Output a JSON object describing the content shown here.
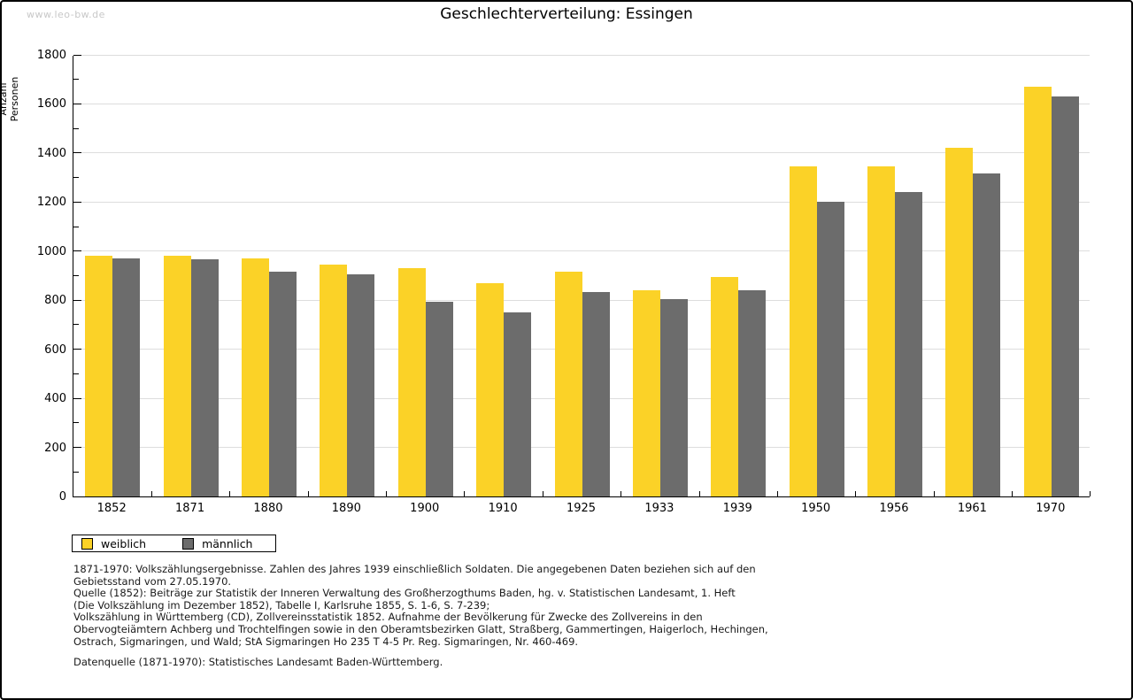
{
  "page": {
    "watermark": "www.leo-bw.de",
    "title": "Geschlechterverteilung: Essingen"
  },
  "chart_data": {
    "type": "bar",
    "title": "Geschlechterverteilung: Essingen",
    "xlabel": "",
    "ylabel": "Anzahl Personen",
    "ylim": [
      0,
      1800
    ],
    "ytick_step": 200,
    "yminor_step": 100,
    "grid": true,
    "legend_position": "bottom-left",
    "categories": [
      "1852",
      "1871",
      "1880",
      "1890",
      "1900",
      "1910",
      "1925",
      "1933",
      "1939",
      "1950",
      "1956",
      "1961",
      "1970"
    ],
    "series": [
      {
        "name": "weiblich",
        "color": "#FBD227",
        "values": [
          980,
          980,
          970,
          945,
          930,
          870,
          915,
          840,
          895,
          1345,
          1345,
          1420,
          1670
        ]
      },
      {
        "name": "männlich",
        "color": "#6C6C6C",
        "values": [
          970,
          965,
          915,
          905,
          795,
          750,
          835,
          805,
          840,
          1200,
          1240,
          1315,
          1630
        ]
      }
    ],
    "colors": {
      "gridline": "#dddddd",
      "axis": "#000000"
    }
  },
  "footer": {
    "lines": [
      "1871-1970: Volkszählungsergebnisse. Zahlen des Jahres 1939 einschließlich Soldaten. Die angegebenen Daten beziehen sich auf den",
      "Gebietsstand vom 27.05.1970.",
      "Quelle (1852): Beiträge zur Statistik der Inneren Verwaltung des Großherzogthums Baden, hg. v. Statistischen Landesamt, 1. Heft",
      "(Die Volkszählung im Dezember 1852), Tabelle I, Karlsruhe 1855, S. 1-6, S. 7-239;",
      "Volkszählung in Württemberg (CD), Zollvereinsstatistik 1852. Aufnahme der Bevölkerung für Zwecke des Zollvereins in den",
      "Obervogteiämtern Achberg und Trochtelfingen sowie in den Oberamtsbezirken Glatt, Straßberg, Gammertingen, Haigerloch, Hechingen,",
      "Ostrach, Sigmaringen, und Wald; StA Sigmaringen Ho 235 T 4-5 Pr. Reg. Sigmaringen, Nr. 460-469."
    ],
    "datasource": "Datenquelle (1871-1970): Statistisches Landesamt Baden-Württemberg."
  }
}
